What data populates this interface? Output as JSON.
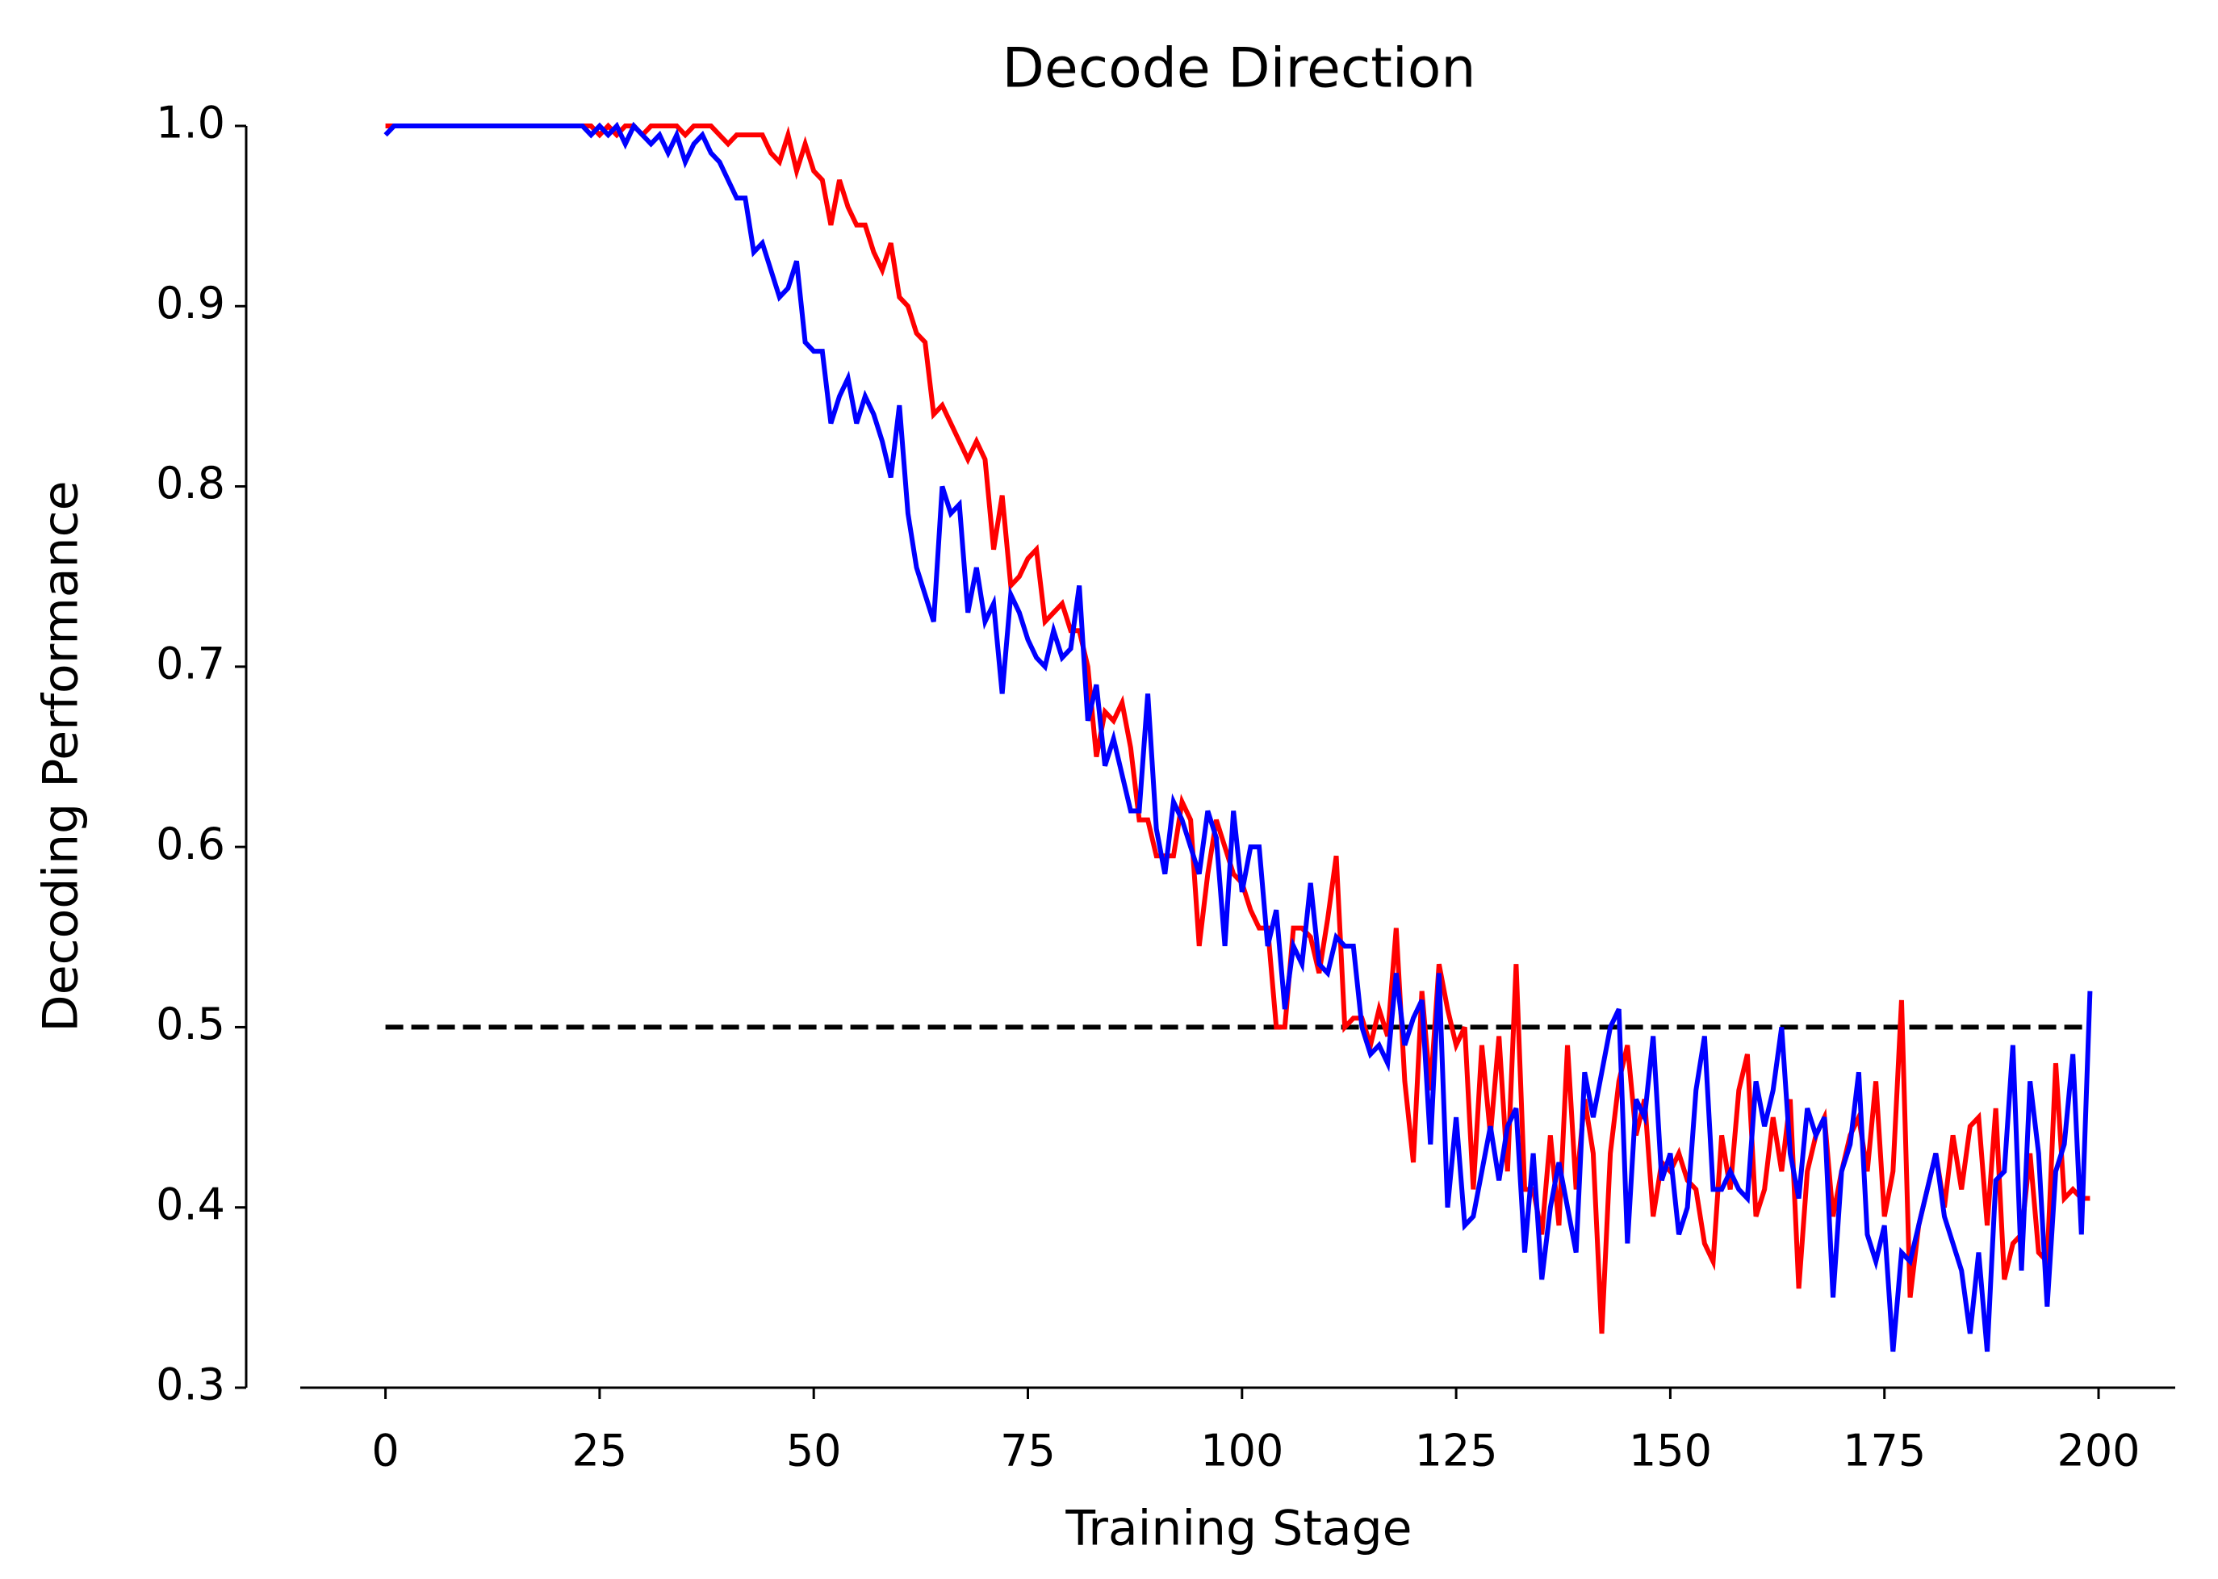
{
  "chart_data": {
    "type": "line",
    "title": "Decode Direction",
    "x_label": "Training Stage",
    "y_label": "Decoding Performance",
    "xlim": [
      -9.95,
      208.95
    ],
    "ylim": [
      0.3,
      1.0
    ],
    "xticks": [
      0,
      25,
      50,
      75,
      100,
      125,
      150,
      175,
      200
    ],
    "yticks": [
      0.3,
      0.4,
      0.5,
      0.6,
      0.7,
      0.8,
      0.9,
      {
        "value": 1.0,
        "label": "1.0"
      }
    ],
    "grid": false,
    "reference_line": {
      "y": 0.5,
      "x": [
        0,
        199
      ],
      "color": "#000000",
      "style": "dashed"
    },
    "series": [
      {
        "color": "#ff0000",
        "values": [
          1.0,
          1.0,
          1.0,
          1.0,
          1.0,
          1.0,
          1.0,
          1.0,
          1.0,
          1.0,
          1.0,
          1.0,
          1.0,
          1.0,
          1.0,
          1.0,
          1.0,
          1.0,
          1.0,
          1.0,
          1.0,
          1.0,
          1.0,
          1.0,
          1.0,
          0.995,
          1.0,
          0.995,
          1.0,
          1.0,
          0.995,
          1.0,
          1.0,
          1.0,
          1.0,
          0.995,
          1.0,
          1.0,
          1.0,
          0.995,
          0.99,
          0.995,
          0.995,
          0.995,
          0.995,
          0.985,
          0.98,
          0.995,
          0.975,
          0.99,
          0.975,
          0.97,
          0.945,
          0.97,
          0.955,
          0.945,
          0.945,
          0.93,
          0.92,
          0.935,
          0.905,
          0.9,
          0.885,
          0.88,
          0.84,
          0.845,
          0.835,
          0.825,
          0.815,
          0.825,
          0.815,
          0.765,
          0.795,
          0.745,
          0.75,
          0.76,
          0.765,
          0.725,
          0.73,
          0.735,
          0.72,
          0.72,
          0.7,
          0.65,
          0.675,
          0.67,
          0.68,
          0.655,
          0.615,
          0.615,
          0.595,
          0.595,
          0.595,
          0.625,
          0.615,
          0.545,
          0.585,
          0.615,
          0.6,
          0.585,
          0.58,
          0.565,
          0.555,
          0.555,
          0.5,
          0.5,
          0.555,
          0.555,
          0.55,
          0.53,
          0.56,
          0.595,
          0.5,
          0.505,
          0.505,
          0.49,
          0.51,
          0.495,
          0.555,
          0.47,
          0.425,
          0.52,
          0.465,
          0.535,
          0.51,
          0.49,
          0.5,
          0.41,
          0.49,
          0.44,
          0.495,
          0.42,
          0.535,
          0.41,
          0.41,
          0.385,
          0.44,
          0.39,
          0.49,
          0.41,
          0.46,
          0.43,
          0.33,
          0.43,
          0.47,
          0.49,
          0.44,
          0.46,
          0.395,
          0.425,
          0.42,
          0.43,
          0.415,
          0.41,
          0.38,
          0.37,
          0.44,
          0.41,
          0.465,
          0.485,
          0.395,
          0.41,
          0.45,
          0.42,
          0.46,
          0.355,
          0.42,
          0.44,
          0.45,
          0.395,
          0.42,
          0.44,
          0.45,
          0.42,
          0.47,
          0.395,
          0.42,
          0.515,
          0.35,
          0.39,
          0.41,
          0.43,
          0.4,
          0.44,
          0.41,
          0.445,
          0.45,
          0.39,
          0.455,
          0.36,
          0.38,
          0.385,
          0.43,
          0.375,
          0.37,
          0.48,
          0.405,
          0.41,
          0.405,
          0.405
        ]
      },
      {
        "color": "#0000ff",
        "values": [
          0.995,
          1.0,
          1.0,
          1.0,
          1.0,
          1.0,
          1.0,
          1.0,
          1.0,
          1.0,
          1.0,
          1.0,
          1.0,
          1.0,
          1.0,
          1.0,
          1.0,
          1.0,
          1.0,
          1.0,
          1.0,
          1.0,
          1.0,
          1.0,
          0.995,
          1.0,
          0.995,
          1.0,
          0.99,
          1.0,
          0.995,
          0.99,
          0.995,
          0.985,
          0.995,
          0.98,
          0.99,
          0.995,
          0.985,
          0.98,
          0.97,
          0.96,
          0.96,
          0.93,
          0.935,
          0.92,
          0.905,
          0.91,
          0.925,
          0.88,
          0.875,
          0.875,
          0.835,
          0.85,
          0.86,
          0.835,
          0.85,
          0.84,
          0.825,
          0.805,
          0.845,
          0.785,
          0.755,
          0.74,
          0.725,
          0.8,
          0.785,
          0.79,
          0.73,
          0.755,
          0.725,
          0.735,
          0.685,
          0.74,
          0.73,
          0.715,
          0.705,
          0.7,
          0.72,
          0.705,
          0.71,
          0.745,
          0.67,
          0.69,
          0.645,
          0.66,
          0.64,
          0.62,
          0.62,
          0.685,
          0.61,
          0.585,
          0.625,
          0.615,
          0.6,
          0.585,
          0.62,
          0.605,
          0.545,
          0.62,
          0.575,
          0.6,
          0.6,
          0.545,
          0.565,
          0.51,
          0.545,
          0.535,
          0.58,
          0.535,
          0.53,
          0.55,
          0.545,
          0.545,
          0.5,
          0.485,
          0.49,
          0.48,
          0.53,
          0.49,
          0.505,
          0.515,
          0.435,
          0.53,
          0.4,
          0.45,
          0.39,
          0.395,
          0.42,
          0.445,
          0.415,
          0.445,
          0.455,
          0.375,
          0.43,
          0.36,
          0.4,
          0.425,
          0.4,
          0.375,
          0.475,
          0.45,
          0.475,
          0.5,
          0.51,
          0.38,
          0.46,
          0.45,
          0.495,
          0.415,
          0.43,
          0.385,
          0.4,
          0.465,
          0.495,
          0.41,
          0.41,
          0.42,
          0.41,
          0.405,
          0.47,
          0.445,
          0.465,
          0.5,
          0.43,
          0.405,
          0.455,
          0.44,
          0.45,
          0.35,
          0.42,
          0.435,
          0.475,
          0.385,
          0.37,
          0.39,
          0.32,
          0.375,
          0.37,
          0.39,
          0.41,
          0.43,
          0.395,
          0.38,
          0.365,
          0.33,
          0.375,
          0.32,
          0.415,
          0.42,
          0.49,
          0.365,
          0.47,
          0.43,
          0.345,
          0.42,
          0.435,
          0.485,
          0.385,
          0.52
        ]
      }
    ]
  }
}
